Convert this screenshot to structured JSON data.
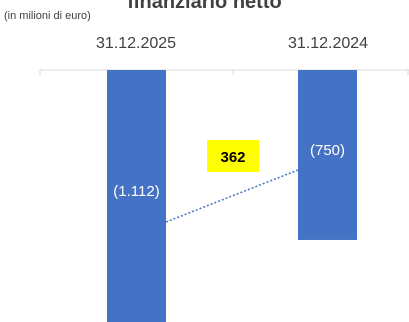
{
  "title": "finanziario netto",
  "unit_note": "(in milioni di euro)",
  "chart_data": {
    "type": "bar",
    "categories": [
      "31.12.2025",
      "31.12.2024"
    ],
    "values": [
      -1112,
      -750
    ],
    "value_labels": [
      "(1.112)",
      "(750)"
    ],
    "ylim": [
      -1112,
      0
    ],
    "bar_color": "#4472c4",
    "connector": {
      "from_category": "31.12.2025",
      "to_category": "31.12.2024",
      "style": "dotted",
      "color": "#4472c4"
    },
    "difference": {
      "value": 362,
      "label": "362",
      "background": "#ffff00"
    },
    "gridlines": false
  }
}
